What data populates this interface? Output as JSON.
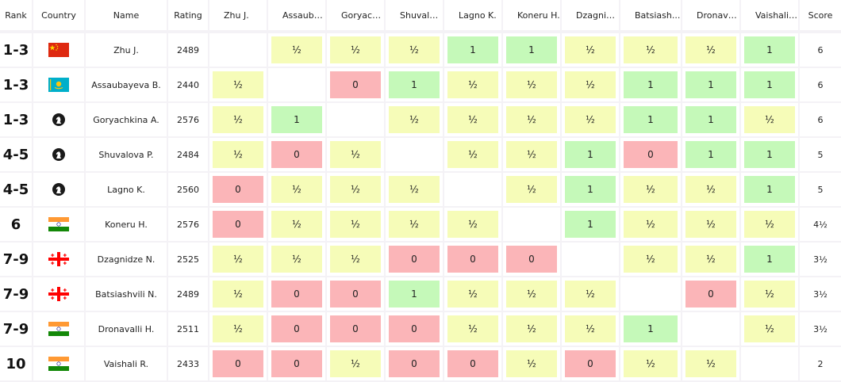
{
  "headers": {
    "rank": "Rank",
    "country": "Country",
    "name": "Name",
    "rating": "Rating",
    "opponents": [
      "Zhu J.",
      "Assauba...",
      "Goryach...",
      "Shuvalo...",
      "Lagno K.",
      "Koneru H.",
      "Dzagnid...",
      "Batsiash...",
      "Dronava...",
      "Vaishali R."
    ],
    "score": "Score"
  },
  "colors": {
    "win": "#c5f9b9",
    "draw": "#f6fcb8",
    "loss": "#fbb5b8",
    "background": "#f4f2f6",
    "cell": "#ffffff"
  },
  "players": [
    {
      "rank": "1-3",
      "country": "china-flag",
      "name": "Zhu J.",
      "rating": "2489",
      "results": [
        "",
        "½",
        "½",
        "½",
        "1",
        "1",
        "½",
        "½",
        "½",
        "1"
      ],
      "score": "6"
    },
    {
      "rank": "1-3",
      "country": "kazakhstan-flag",
      "name": "Assaubayeva B.",
      "rating": "2440",
      "results": [
        "½",
        "",
        "0",
        "1",
        "½",
        "½",
        "½",
        "1",
        "1",
        "1"
      ],
      "score": "6"
    },
    {
      "rank": "1-3",
      "country": "fide-flag",
      "name": "Goryachkina A.",
      "rating": "2576",
      "results": [
        "½",
        "1",
        "",
        "½",
        "½",
        "½",
        "½",
        "1",
        "1",
        "½"
      ],
      "score": "6"
    },
    {
      "rank": "4-5",
      "country": "fide-flag",
      "name": "Shuvalova P.",
      "rating": "2484",
      "results": [
        "½",
        "0",
        "½",
        "",
        "½",
        "½",
        "1",
        "0",
        "1",
        "1"
      ],
      "score": "5"
    },
    {
      "rank": "4-5",
      "country": "fide-flag",
      "name": "Lagno K.",
      "rating": "2560",
      "results": [
        "0",
        "½",
        "½",
        "½",
        "",
        "½",
        "1",
        "½",
        "½",
        "1"
      ],
      "score": "5"
    },
    {
      "rank": "6",
      "country": "india-flag",
      "name": "Koneru H.",
      "rating": "2576",
      "results": [
        "0",
        "½",
        "½",
        "½",
        "½",
        "",
        "1",
        "½",
        "½",
        "½"
      ],
      "score": "4½"
    },
    {
      "rank": "7-9",
      "country": "georgia-flag",
      "name": "Dzagnidze N.",
      "rating": "2525",
      "results": [
        "½",
        "½",
        "½",
        "0",
        "0",
        "0",
        "",
        "½",
        "½",
        "1"
      ],
      "score": "3½"
    },
    {
      "rank": "7-9",
      "country": "georgia-flag",
      "name": "Batsiashvili N.",
      "rating": "2489",
      "results": [
        "½",
        "0",
        "0",
        "1",
        "½",
        "½",
        "½",
        "",
        "0",
        "½"
      ],
      "score": "3½"
    },
    {
      "rank": "7-9",
      "country": "india-flag",
      "name": "Dronavalli H.",
      "rating": "2511",
      "results": [
        "½",
        "0",
        "0",
        "0",
        "½",
        "½",
        "½",
        "1",
        "",
        "½"
      ],
      "score": "3½"
    },
    {
      "rank": "10",
      "country": "india-flag",
      "name": "Vaishali R.",
      "rating": "2433",
      "results": [
        "0",
        "0",
        "½",
        "0",
        "0",
        "½",
        "0",
        "½",
        "½",
        ""
      ],
      "score": "2"
    }
  ]
}
